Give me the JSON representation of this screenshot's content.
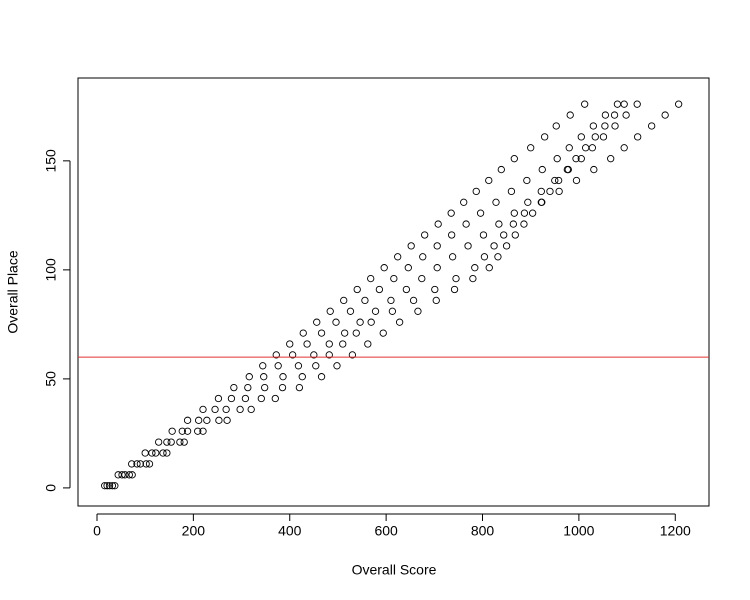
{
  "chart_data": {
    "type": "scatter",
    "xlabel": "Overall Score",
    "ylabel": "Overall Place",
    "xlim": [
      -39.4,
      1270
    ],
    "ylim": [
      -8.3,
      188
    ],
    "xticks": [
      0,
      200,
      400,
      600,
      800,
      1000,
      1200
    ],
    "yticks": [
      0,
      50,
      100,
      150
    ],
    "color": "#000000",
    "hline": 60,
    "hline_color": "#e03030",
    "series": [
      {
        "x": [
          16,
          44,
          72,
          100,
          128,
          156,
          188,
          220,
          252,
          284,
          316,
          344,
          372,
          400,
          428,
          456,
          484,
          512,
          540,
          568,
          596,
          624,
          652,
          680,
          708,
          735,
          761,
          787,
          813,
          839,
          866,
          900,
          929,
          953,
          982,
          1012
        ],
        "y": [
          1,
          6,
          11,
          16,
          21,
          26,
          31,
          36,
          41,
          46,
          51,
          56,
          61,
          66,
          71,
          76,
          81,
          86,
          91,
          96,
          101,
          106,
          111,
          116,
          121,
          126,
          131,
          136,
          141,
          146,
          151,
          156,
          161,
          166,
          171,
          176
        ]
      },
      {
        "x": [
          21,
          52,
          83,
          114,
          145,
          177,
          211,
          245,
          279,
          313,
          346,
          376,
          406,
          436,
          466,
          496,
          526,
          556,
          586,
          616,
          646,
          676,
          706,
          736,
          766,
          796,
          828,
          860,
          892,
          924,
          955,
          980,
          1005,
          1030,
          1055,
          1080
        ],
        "y": [
          1,
          6,
          11,
          16,
          21,
          26,
          31,
          36,
          41,
          46,
          51,
          56,
          61,
          66,
          71,
          76,
          81,
          86,
          91,
          96,
          101,
          106,
          111,
          116,
          121,
          126,
          131,
          136,
          141,
          146,
          151,
          156,
          161,
          166,
          171,
          176
        ]
      },
      {
        "x": [
          26,
          58,
          90,
          122,
          154,
          188,
          228,
          268,
          308,
          348,
          386,
          418,
          450,
          482,
          514,
          546,
          578,
          610,
          642,
          674,
          706,
          738,
          770,
          802,
          834,
          866,
          894,
          922,
          950,
          978,
          1005,
          1028,
          1051,
          1075,
          1098,
          1121
        ],
        "y": [
          1,
          6,
          11,
          16,
          21,
          26,
          31,
          36,
          41,
          46,
          51,
          56,
          61,
          66,
          71,
          76,
          81,
          86,
          91,
          96,
          101,
          106,
          111,
          116,
          121,
          126,
          131,
          136,
          141,
          146,
          151,
          156,
          161,
          166,
          171,
          176
        ]
      },
      {
        "x": [
          32,
          67,
          102,
          137,
          172,
          209,
          253,
          297,
          341,
          385,
          426,
          454,
          482,
          510,
          538,
          569,
          613,
          657,
          701,
          745,
          784,
          804,
          824,
          844,
          864,
          887,
          923,
          959,
          995,
          1031,
          1066,
          1094,
          1122,
          1151,
          1179,
          1207
        ],
        "y": [
          1,
          6,
          11,
          16,
          21,
          26,
          31,
          36,
          41,
          46,
          51,
          56,
          61,
          66,
          71,
          76,
          81,
          86,
          91,
          96,
          101,
          106,
          111,
          116,
          121,
          126,
          131,
          136,
          141,
          146,
          151,
          156,
          161,
          166,
          171,
          176
        ]
      },
      {
        "x": [
          37,
          73,
          109,
          145,
          181,
          220,
          270,
          320,
          370,
          420,
          466,
          498,
          530,
          562,
          594,
          628,
          666,
          704,
          742,
          780,
          814,
          832,
          850,
          868,
          886,
          904,
          922,
          940,
          958,
          976,
          994,
          1014,
          1034,
          1054,
          1074,
          1094
        ],
        "y": [
          1,
          6,
          11,
          16,
          21,
          26,
          31,
          36,
          41,
          46,
          51,
          56,
          61,
          66,
          71,
          76,
          81,
          86,
          91,
          96,
          101,
          106,
          111,
          116,
          121,
          126,
          131,
          136,
          141,
          146,
          151,
          156,
          161,
          166,
          171,
          176
        ]
      }
    ]
  }
}
